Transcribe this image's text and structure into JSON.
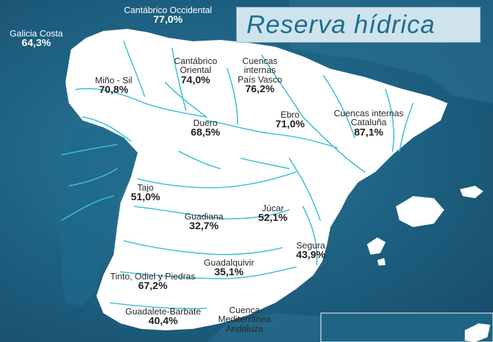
{
  "title": "Reserva hídrica",
  "colors": {
    "sea": "#1f6485",
    "land": "#ffffff",
    "river": "#3fc0d0",
    "title_bg": "#cfe3ec",
    "title_text": "#1f6d94"
  },
  "basins": [
    {
      "id": "cantabrico-occidental",
      "name": "Cantábrico Occidental",
      "value": "77,0%"
    },
    {
      "id": "galicia-costa",
      "name": "Galicia Costa",
      "value": "64,3%"
    },
    {
      "id": "mino-sil",
      "name": "Miño - Sil",
      "value": "70,8%"
    },
    {
      "id": "cantabrico-oriental",
      "name": "Cantábrico Oriental",
      "value": "74,0%"
    },
    {
      "id": "cuencas-pais-vasco",
      "name": "Cuencas internas País Vasco",
      "value": "76,2%"
    },
    {
      "id": "duero",
      "name": "Duero",
      "value": "68,5%"
    },
    {
      "id": "ebro",
      "name": "Ebro",
      "value": "71,0%"
    },
    {
      "id": "cuencas-cataluna",
      "name": "Cuencas internas Cataluña",
      "value": "87,1%"
    },
    {
      "id": "tajo",
      "name": "Tajo",
      "value": "51,0%"
    },
    {
      "id": "guadiana",
      "name": "Guadiana",
      "value": "32,7%"
    },
    {
      "id": "jucar",
      "name": "Júcar",
      "value": "52,1%"
    },
    {
      "id": "segura",
      "name": "Segura",
      "value": "43,9%"
    },
    {
      "id": "guadalquivir",
      "name": "Guadalquivir",
      "value": "35,1%"
    },
    {
      "id": "tinto-odiel-piedras",
      "name": "Tinto, Odiel y Piedras",
      "value": "67,2%"
    },
    {
      "id": "guadalete-barbate",
      "name": "Guadalete-Barbate",
      "value": "40,4%"
    },
    {
      "id": "cuenca-mediterranea-andaluza",
      "name": "Cuenca Mediterránea Andaluza",
      "value": ""
    }
  ]
}
